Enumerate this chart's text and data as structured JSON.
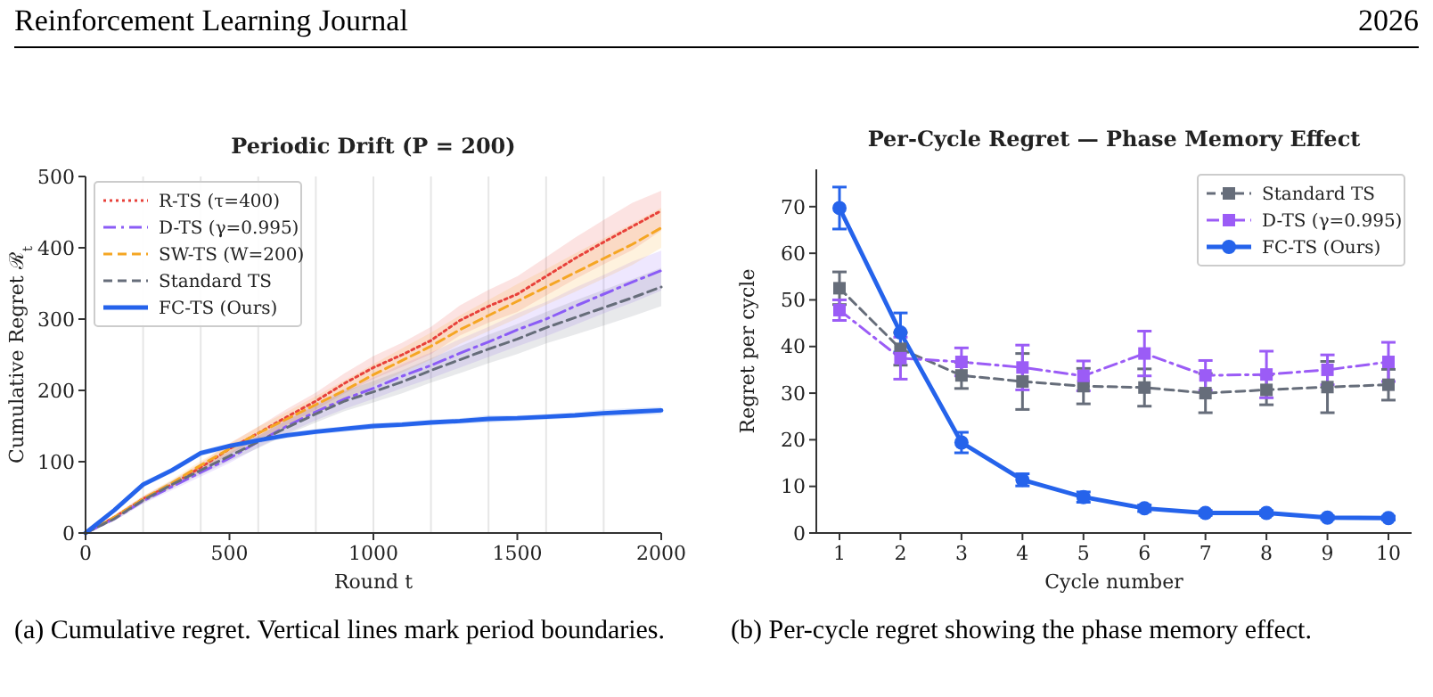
{
  "chart_data": [
    {
      "type": "line",
      "title": "Periodic Drift  (P = 200)",
      "xlabel": "Round t",
      "ylabel": "Cumulative Regret ℛ$_{t}$",
      "annotations": [
        "Reinforcement Learning Journal",
        "2026",
        "(a) Cumulative regret.  Vertical lines mark period boundaries."
      ],
      "x": [
        0,
        100,
        200,
        300,
        400,
        500,
        600,
        700,
        800,
        900,
        1000,
        1100,
        1200,
        1300,
        1400,
        1500,
        1600,
        1700,
        1800,
        1900,
        2000
      ],
      "xlim": [
        0,
        2000
      ],
      "xticks": [
        0,
        500,
        1000,
        1500,
        2000
      ],
      "ylim": [
        0,
        500
      ],
      "yticks": [
        0,
        100,
        200,
        300,
        400,
        500
      ],
      "grid": false,
      "legend": "top left",
      "marker": "none",
      "ref_lines": [
        {
          "axis": "x",
          "value": 200,
          "color": "#e6e6e6"
        },
        {
          "axis": "x",
          "value": 400,
          "color": "#e6e6e6"
        },
        {
          "axis": "x",
          "value": 600,
          "color": "#e6e6e6"
        },
        {
          "axis": "x",
          "value": 800,
          "color": "#e6e6e6"
        },
        {
          "axis": "x",
          "value": 1000,
          "color": "#e6e6e6"
        },
        {
          "axis": "x",
          "value": 1200,
          "color": "#e6e6e6"
        },
        {
          "axis": "x",
          "value": 1400,
          "color": "#e6e6e6"
        },
        {
          "axis": "x",
          "value": 1600,
          "color": "#e6e6e6"
        },
        {
          "axis": "x",
          "value": 1800,
          "color": "#e6e6e6"
        }
      ],
      "series": [
        {
          "name": "R-TS (τ=400)",
          "color": "#e8413a",
          "line_style": "dotted",
          "values": [
            0,
            22,
            48,
            68,
            92,
            118,
            140,
            163,
            185,
            210,
            232,
            250,
            270,
            298,
            318,
            335,
            360,
            385,
            408,
            430,
            452
          ],
          "lower": [
            0,
            19,
            44,
            63,
            86,
            110,
            131,
            152,
            173,
            196,
            216,
            233,
            251,
            277,
            295,
            310,
            333,
            356,
            377,
            397,
            424
          ],
          "upper": [
            0,
            25,
            52,
            73,
            98,
            126,
            149,
            174,
            197,
            224,
            248,
            267,
            289,
            319,
            341,
            360,
            387,
            414,
            439,
            463,
            480
          ]
        },
        {
          "name": "D-TS (γ=0.995)",
          "color": "#8b5cf6",
          "line_style": "dashdot",
          "values": [
            0,
            20,
            45,
            65,
            85,
            105,
            128,
            150,
            170,
            188,
            203,
            220,
            235,
            252,
            268,
            285,
            300,
            318,
            335,
            352,
            368
          ],
          "lower": [
            0,
            17,
            41,
            60,
            79,
            98,
            120,
            140,
            158,
            174,
            188,
            203,
            217,
            232,
            247,
            262,
            276,
            292,
            308,
            323,
            340
          ],
          "upper": [
            0,
            23,
            49,
            70,
            91,
            112,
            136,
            160,
            182,
            202,
            218,
            237,
            253,
            272,
            289,
            308,
            324,
            344,
            362,
            381,
            396
          ]
        },
        {
          "name": "SW-TS (W=200)",
          "color": "#f5a623",
          "line_style": "dashed",
          "values": [
            0,
            22,
            48,
            70,
            95,
            118,
            140,
            160,
            180,
            200,
            222,
            242,
            262,
            285,
            305,
            325,
            345,
            365,
            385,
            405,
            428
          ],
          "lower": [
            0,
            19,
            44,
            65,
            89,
            111,
            131,
            150,
            168,
            186,
            207,
            225,
            243,
            265,
            283,
            301,
            320,
            338,
            357,
            376,
            400
          ],
          "upper": [
            0,
            25,
            52,
            75,
            101,
            125,
            149,
            170,
            192,
            214,
            237,
            259,
            281,
            305,
            327,
            349,
            370,
            392,
            413,
            434,
            456
          ]
        },
        {
          "name": "Standard TS",
          "color": "#666d7a",
          "line_style": "dashed",
          "values": [
            0,
            20,
            46,
            68,
            88,
            108,
            128,
            148,
            167,
            185,
            198,
            212,
            228,
            243,
            258,
            272,
            288,
            302,
            316,
            330,
            345
          ],
          "lower": [
            0,
            17,
            42,
            63,
            82,
            101,
            119,
            138,
            155,
            171,
            183,
            196,
            211,
            224,
            238,
            251,
            266,
            278,
            291,
            304,
            318
          ],
          "upper": [
            0,
            23,
            50,
            73,
            94,
            115,
            137,
            158,
            179,
            199,
            213,
            228,
            245,
            262,
            278,
            293,
            310,
            326,
            341,
            356,
            372
          ]
        },
        {
          "name": "FC-TS (Ours)",
          "color": "#2563eb",
          "line_style": "solid",
          "values": [
            0,
            32,
            68,
            88,
            112,
            122,
            130,
            137,
            142,
            146,
            150,
            152,
            155,
            157,
            160,
            161,
            163,
            165,
            168,
            170,
            172
          ],
          "lower": [
            0,
            29,
            64,
            84,
            108,
            118,
            126,
            133,
            138,
            142,
            146,
            148,
            151,
            153,
            155,
            157,
            159,
            161,
            163,
            165,
            167
          ],
          "upper": [
            0,
            35,
            72,
            92,
            116,
            126,
            134,
            141,
            146,
            150,
            154,
            156,
            159,
            161,
            165,
            165,
            167,
            169,
            173,
            175,
            177
          ]
        }
      ]
    },
    {
      "type": "line",
      "title": "Per-Cycle Regret — Phase Memory Effect",
      "xlabel": "Cycle number",
      "ylabel": "Regret per cycle",
      "annotations": [
        "(b) Per-cycle regret showing the phase memory effect."
      ],
      "categories": [
        "1",
        "2",
        "3",
        "4",
        "5",
        "6",
        "7",
        "8",
        "9",
        "10"
      ],
      "ylim": [
        0,
        78
      ],
      "yticks": [
        0,
        10,
        20,
        30,
        40,
        50,
        60,
        70
      ],
      "grid": false,
      "legend": "top right",
      "series": [
        {
          "name": "Standard TS",
          "color": "#666d7a",
          "line_style": "dashed",
          "marker": "square",
          "values": [
            52.5,
            39.5,
            33.8,
            32.5,
            31.5,
            31.2,
            30,
            30.7,
            31.3,
            31.8
          ],
          "errors": [
            3.5,
            3.5,
            2.8,
            6,
            3.8,
            4,
            4.2,
            3.2,
            5.5,
            3.3
          ]
        },
        {
          "name": "D-TS (γ=0.995)",
          "color": "#9b5cf6",
          "line_style": "dashdot",
          "marker": "square",
          "values": [
            47.8,
            37.5,
            36.7,
            35.5,
            33.7,
            38.5,
            33.8,
            34,
            35,
            36.7
          ],
          "errors": [
            2.2,
            4.5,
            3,
            4.8,
            3.2,
            4.8,
            3.2,
            5,
            3.2,
            4.2
          ]
        },
        {
          "name": "FC-TS (Ours)",
          "color": "#2563eb",
          "line_style": "solid",
          "marker": "circle",
          "values": [
            69.7,
            43,
            19.4,
            11.4,
            7.7,
            5.3,
            4.3,
            4.3,
            3.3,
            3.2
          ],
          "errors": [
            4.5,
            4.2,
            2.2,
            1.3,
            1.1,
            0.7,
            0.5,
            0.5,
            0.4,
            0.4
          ]
        }
      ]
    }
  ]
}
